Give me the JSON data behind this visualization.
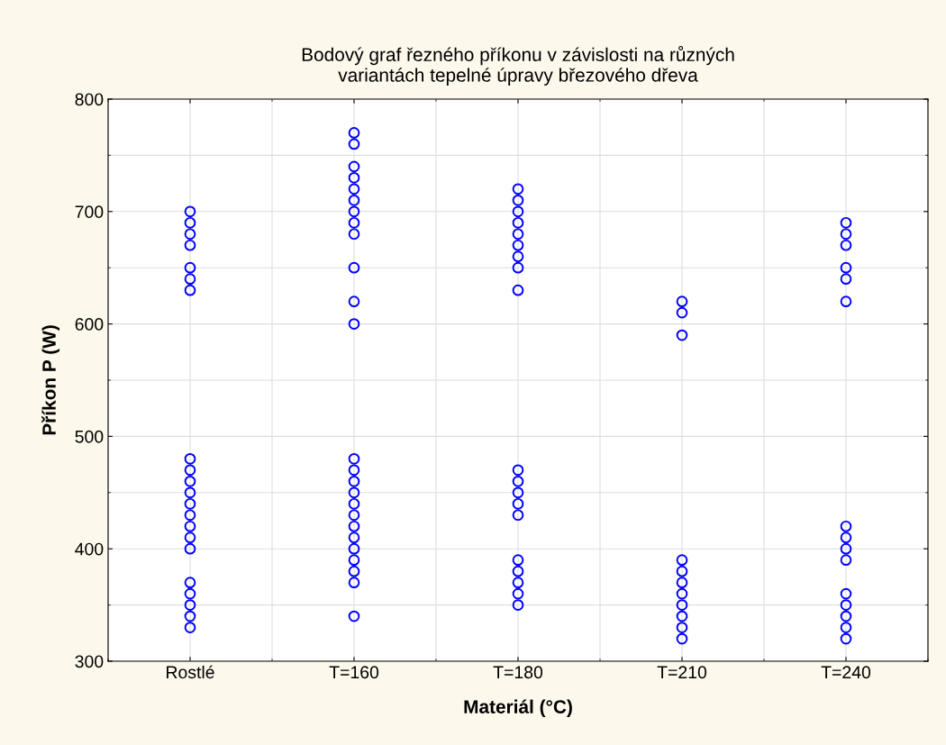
{
  "chart_data": {
    "type": "scatter",
    "title": "Bodový graf řezného příkonu v závislosti na různých\nvariantách tepelné úpravy březového dřeva",
    "xlabel": "Materiál (°C)",
    "ylabel": "Příkon P (W)",
    "categories": [
      "Rostlé",
      "T=160",
      "T=180",
      "T=210",
      "T=240"
    ],
    "series": [
      {
        "color": "#0000ff",
        "x": [
          "Rostlé",
          "Rostlé",
          "Rostlé",
          "Rostlé",
          "Rostlé",
          "Rostlé",
          "Rostlé",
          "Rostlé",
          "Rostlé",
          "Rostlé",
          "Rostlé",
          "Rostlé",
          "Rostlé",
          "Rostlé",
          "Rostlé",
          "Rostlé",
          "Rostlé",
          "Rostlé",
          "Rostlé",
          "Rostlé",
          "Rostlé"
        ],
        "values": [
          700,
          690,
          680,
          670,
          650,
          640,
          630,
          480,
          470,
          460,
          450,
          440,
          430,
          420,
          410,
          400,
          370,
          360,
          350,
          340,
          330
        ]
      },
      {
        "color": "#0000ff",
        "x": [
          "T=160",
          "T=160",
          "T=160",
          "T=160",
          "T=160",
          "T=160",
          "T=160",
          "T=160",
          "T=160",
          "T=160",
          "T=160",
          "T=160",
          "T=160",
          "T=160",
          "T=160",
          "T=160",
          "T=160",
          "T=160",
          "T=160",
          "T=160",
          "T=160",
          "T=160",
          "T=160",
          "T=160",
          "T=160"
        ],
        "values": [
          770,
          760,
          740,
          730,
          720,
          710,
          700,
          690,
          680,
          650,
          620,
          600,
          480,
          470,
          460,
          450,
          440,
          430,
          420,
          410,
          400,
          390,
          380,
          370,
          340
        ]
      },
      {
        "color": "#0000ff",
        "x": [
          "T=180",
          "T=180",
          "T=180",
          "T=180",
          "T=180",
          "T=180",
          "T=180",
          "T=180",
          "T=180",
          "T=180",
          "T=180",
          "T=180",
          "T=180",
          "T=180",
          "T=180",
          "T=180",
          "T=180",
          "T=180",
          "T=180"
        ],
        "values": [
          720,
          710,
          700,
          690,
          680,
          670,
          660,
          650,
          630,
          470,
          460,
          450,
          440,
          430,
          390,
          380,
          370,
          360,
          350
        ]
      },
      {
        "color": "#0000ff",
        "x": [
          "T=210",
          "T=210",
          "T=210",
          "T=210",
          "T=210",
          "T=210",
          "T=210",
          "T=210",
          "T=210",
          "T=210",
          "T=210"
        ],
        "values": [
          620,
          610,
          590,
          390,
          380,
          370,
          360,
          350,
          340,
          330,
          320
        ]
      },
      {
        "color": "#0000ff",
        "x": [
          "T=240",
          "T=240",
          "T=240",
          "T=240",
          "T=240",
          "T=240",
          "T=240",
          "T=240",
          "T=240",
          "T=240",
          "T=240",
          "T=240",
          "T=240",
          "T=240",
          "T=240"
        ],
        "values": [
          690,
          680,
          670,
          650,
          640,
          620,
          420,
          410,
          400,
          390,
          360,
          350,
          340,
          330,
          320
        ]
      }
    ],
    "ylim": [
      300,
      800
    ],
    "yticks": [
      300,
      400,
      500,
      600,
      700,
      800
    ],
    "grid": true,
    "marker": "circle",
    "legend": false
  }
}
